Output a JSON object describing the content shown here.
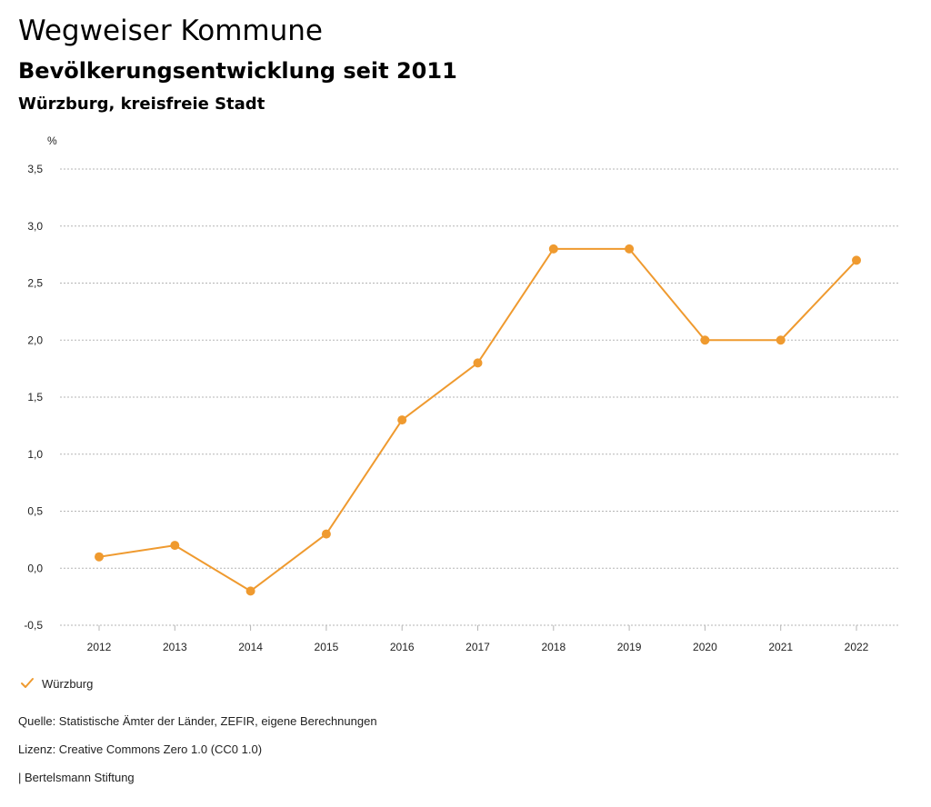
{
  "header": {
    "title": "Wegweiser Kommune",
    "subtitle": "Bevölkerungsentwicklung seit 2011",
    "region": "Würzburg, kreisfreie Stadt"
  },
  "chart_data": {
    "type": "line",
    "title": "Bevölkerungsentwicklung seit 2011",
    "ylabel": "%",
    "xlabel": "",
    "categories": [
      "2012",
      "2013",
      "2014",
      "2015",
      "2016",
      "2017",
      "2018",
      "2019",
      "2020",
      "2021",
      "2022"
    ],
    "series": [
      {
        "name": "Würzburg",
        "color": "#ef9a2f",
        "values": [
          0.1,
          0.2,
          -0.2,
          0.3,
          1.3,
          1.8,
          2.8,
          2.8,
          2.0,
          2.0,
          2.7
        ]
      }
    ],
    "ylim": [
      -0.5,
      3.5
    ],
    "yticks": [
      3.5,
      3.0,
      2.5,
      2.0,
      1.5,
      1.0,
      0.5,
      0.0,
      -0.5
    ],
    "ytick_labels": [
      "3,5",
      "3,0",
      "2,5",
      "2,0",
      "1,5",
      "1,0",
      "0,5",
      "0,0",
      "-0,5"
    ],
    "grid": true,
    "legend": "bottom-left"
  },
  "footer": {
    "source": "Quelle: Statistische Ämter der Länder, ZEFIR, eigene Berechnungen",
    "license": "Lizenz: Creative Commons Zero 1.0 (CC0 1.0)",
    "publisher": "| Bertelsmann Stiftung"
  }
}
